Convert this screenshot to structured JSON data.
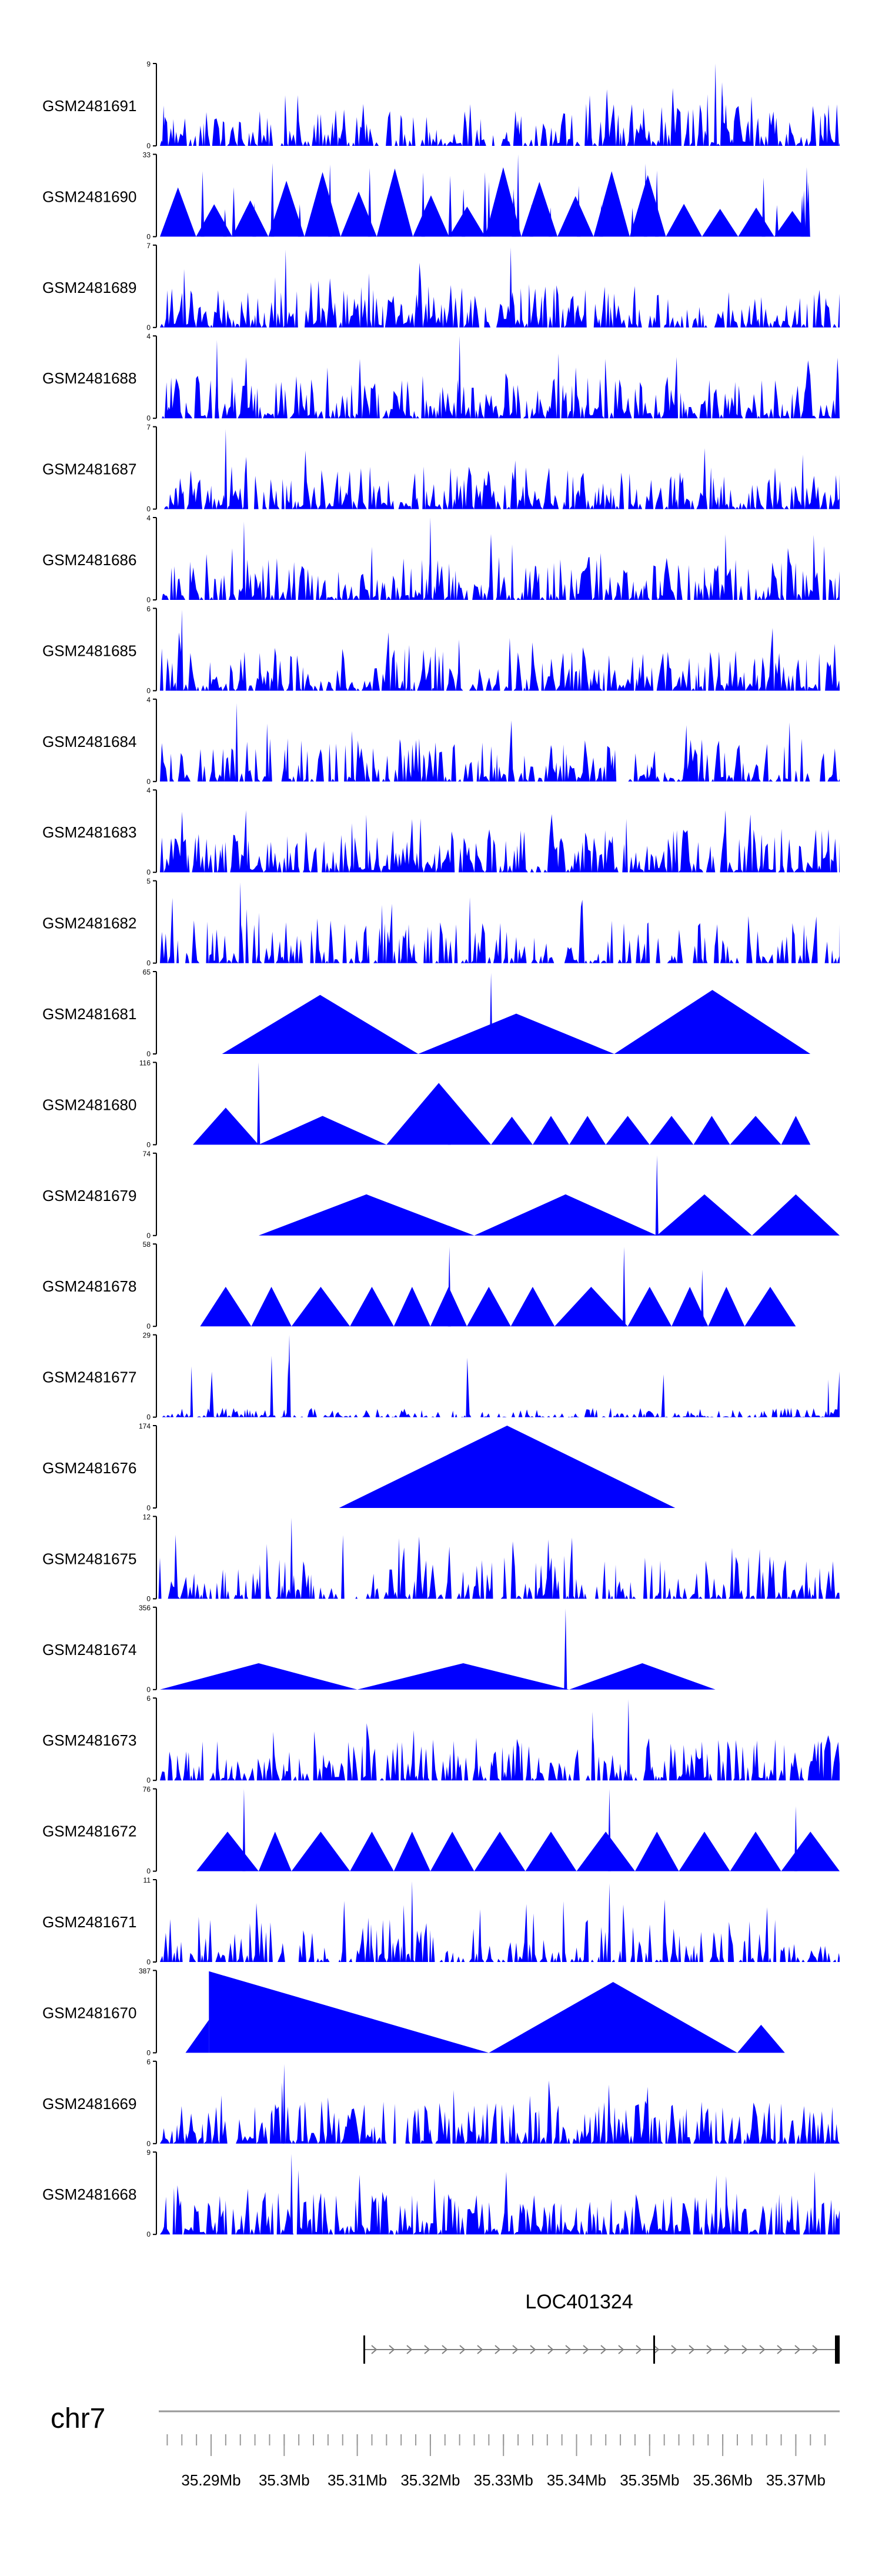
{
  "colors": {
    "signal": "#0000ff",
    "axis": "#000000",
    "gene": "#7f7f7f",
    "chrom_line": "#999999"
  },
  "gene": {
    "name": "LOC401324",
    "strand": "+"
  },
  "chromosome": {
    "label": "chr7"
  },
  "chart_data": {
    "type": "area",
    "title": "",
    "xlabel": "",
    "x_range_mb": [
      35.283,
      35.376
    ],
    "x_ticks": [
      {
        "pos": 35.29,
        "label": "35.29Mb"
      },
      {
        "pos": 35.3,
        "label": "35.3Mb"
      },
      {
        "pos": 35.31,
        "label": "35.31Mb"
      },
      {
        "pos": 35.32,
        "label": "35.32Mb"
      },
      {
        "pos": 35.33,
        "label": "35.33Mb"
      },
      {
        "pos": 35.34,
        "label": "35.34Mb"
      },
      {
        "pos": 35.35,
        "label": "35.35Mb"
      },
      {
        "pos": 35.36,
        "label": "35.36Mb"
      },
      {
        "pos": 35.37,
        "label": "35.37Mb"
      }
    ],
    "series": [
      {
        "name": "GSM2481691",
        "ymax": 9,
        "style": "dense",
        "seed": 11,
        "density": 0.62,
        "end": 1.0,
        "spikes": [
          [
            35.359,
            9.0
          ],
          [
            35.36,
            5.6
          ],
          [
            35.2835,
            4.4
          ]
        ]
      },
      {
        "name": "GSM2481690",
        "ymax": 33,
        "style": "tri",
        "seed": 12,
        "start": 35.283,
        "end": 35.372,
        "peaks": [
          0.25,
          0.55
        ],
        "nspike": 28,
        "spikes": [
          [
            35.332,
            33.0
          ],
          [
            35.328,
            22.0
          ]
        ]
      },
      {
        "name": "GSM2481689",
        "ymax": 7,
        "style": "dense",
        "seed": 13,
        "density": 0.72,
        "end": 1.0,
        "spikes": [
          [
            35.331,
            6.8
          ],
          [
            35.3002,
            6.6
          ]
        ]
      },
      {
        "name": "GSM2481688",
        "ymax": 4,
        "style": "dense",
        "seed": 14,
        "density": 0.75,
        "end": 1.0,
        "spikes": [
          [
            35.324,
            4.0
          ],
          [
            35.2908,
            3.8
          ]
        ]
      },
      {
        "name": "GSM2481687",
        "ymax": 7,
        "style": "dense",
        "seed": 15,
        "density": 0.72,
        "end": 1.0,
        "spikes": [
          [
            35.292,
            6.8
          ]
        ]
      },
      {
        "name": "GSM2481686",
        "ymax": 4,
        "style": "dense",
        "seed": 16,
        "density": 0.7,
        "end": 1.0,
        "spikes": [
          [
            35.32,
            4.0
          ],
          [
            35.2945,
            3.8
          ]
        ]
      },
      {
        "name": "GSM2481685",
        "ymax": 6,
        "style": "dense",
        "seed": 17,
        "density": 0.7,
        "end": 1.0,
        "spikes": [
          [
            35.286,
            5.9
          ]
        ]
      },
      {
        "name": "GSM2481684",
        "ymax": 4,
        "style": "dense",
        "seed": 18,
        "density": 0.62,
        "end": 1.0,
        "spikes": [
          [
            35.2935,
            3.8
          ]
        ]
      },
      {
        "name": "GSM2481683",
        "ymax": 4,
        "style": "dense",
        "seed": 19,
        "density": 0.78,
        "end": 1.0,
        "spikes": []
      },
      {
        "name": "GSM2481682",
        "ymax": 5,
        "style": "dense",
        "seed": 20,
        "density": 0.5,
        "end": 1.0,
        "spikes": [
          [
            35.294,
            4.9
          ],
          [
            35.3254,
            4.0
          ]
        ]
      },
      {
        "name": "GSM2481681",
        "ymax": 65,
        "style": "tri",
        "seed": 21,
        "start": 35.2915,
        "end": 35.372,
        "segments": 3,
        "peaks": [
          0.6
        ],
        "nspike": 0,
        "spikes": [
          [
            35.3283,
            64.0
          ]
        ]
      },
      {
        "name": "GSM2481680",
        "ymax": 116,
        "style": "tri",
        "seed": 22,
        "start": 35.2875,
        "end": 35.372,
        "segs": [
          [
            35.2875,
            35.2965,
            0.45
          ],
          [
            35.2965,
            35.314,
            0.35
          ],
          [
            35.314,
            35.3283,
            0.75
          ],
          [
            35.3283,
            35.334,
            0.34
          ],
          [
            35.334,
            35.339,
            0.35
          ],
          [
            35.339,
            35.344,
            0.35
          ],
          [
            35.344,
            35.35,
            0.35
          ],
          [
            35.35,
            35.356,
            0.35
          ],
          [
            35.356,
            35.361,
            0.35
          ],
          [
            35.361,
            35.368,
            0.35
          ],
          [
            35.368,
            35.372,
            0.35
          ]
        ],
        "spikes": [
          [
            35.2965,
            116.0
          ],
          [
            35.3226,
            64.0
          ]
        ]
      },
      {
        "name": "GSM2481679",
        "ymax": 74,
        "style": "tri",
        "seed": 23,
        "start": 35.2965,
        "end": 35.376,
        "segs": [
          [
            35.2965,
            35.326,
            0.5
          ],
          [
            35.326,
            35.351,
            0.5
          ],
          [
            35.351,
            35.364,
            0.5
          ],
          [
            35.364,
            35.376,
            0.5
          ]
        ],
        "spikes": [
          [
            35.351,
            72.0
          ]
        ]
      },
      {
        "name": "GSM2481678",
        "ymax": 58,
        "style": "tri",
        "seed": 24,
        "start": 35.2885,
        "end": 35.37,
        "segs": [
          [
            35.2885,
            35.2955,
            0.48
          ],
          [
            35.2955,
            35.301,
            0.48
          ],
          [
            35.301,
            35.309,
            0.48
          ],
          [
            35.309,
            35.315,
            0.48
          ],
          [
            35.315,
            35.32,
            0.48
          ],
          [
            35.32,
            35.325,
            0.48
          ],
          [
            35.325,
            35.331,
            0.48
          ],
          [
            35.331,
            35.337,
            0.48
          ],
          [
            35.337,
            35.347,
            0.48
          ],
          [
            35.347,
            35.353,
            0.48
          ],
          [
            35.353,
            35.358,
            0.48
          ],
          [
            35.358,
            35.363,
            0.48
          ],
          [
            35.363,
            35.37,
            0.48
          ]
        ],
        "spikes": [
          [
            35.3226,
            56.0
          ],
          [
            35.3465,
            56.0
          ],
          [
            35.3572,
            40.0
          ]
        ]
      },
      {
        "name": "GSM2481677",
        "ymax": 29,
        "style": "dense",
        "seed": 25,
        "density": 0.5,
        "end": 1.0,
        "amp": 0.12,
        "spikes": [
          [
            35.3007,
            29.0
          ]
        ]
      },
      {
        "name": "GSM2481676",
        "ymax": 174,
        "style": "tri",
        "seed": 26,
        "start": 35.3075,
        "end": 35.3535,
        "segs": [
          [
            35.3075,
            35.3535,
            1.0
          ]
        ],
        "spikes": []
      },
      {
        "name": "GSM2481675",
        "ymax": 12,
        "style": "dense",
        "seed": 27,
        "density": 0.55,
        "end": 1.0,
        "spikes": [
          [
            35.301,
            11.8
          ],
          [
            35.283,
            6.0
          ]
        ]
      },
      {
        "name": "GSM2481674",
        "ymax": 356,
        "style": "tri",
        "seed": 28,
        "start": 35.283,
        "end": 35.359,
        "segs": [
          [
            35.283,
            35.31,
            0.32
          ],
          [
            35.31,
            35.339,
            0.32
          ],
          [
            35.339,
            35.359,
            0.32
          ]
        ],
        "spikes": [
          [
            35.3385,
            350.0
          ]
        ]
      },
      {
        "name": "GSM2481673",
        "ymax": 6,
        "style": "dense",
        "seed": 29,
        "density": 0.65,
        "end": 1.0,
        "spikes": [
          [
            35.3471,
            5.9
          ],
          [
            35.3422,
            5.0
          ]
        ]
      },
      {
        "name": "GSM2481672",
        "ymax": 76,
        "style": "tri",
        "seed": 30,
        "start": 35.288,
        "end": 35.376,
        "segs": [
          [
            35.288,
            35.2965,
            0.48
          ],
          [
            35.2965,
            35.301,
            0.48
          ],
          [
            35.301,
            35.309,
            0.48
          ],
          [
            35.309,
            35.315,
            0.48
          ],
          [
            35.315,
            35.32,
            0.48
          ],
          [
            35.32,
            35.326,
            0.48
          ],
          [
            35.326,
            35.333,
            0.48
          ],
          [
            35.333,
            35.34,
            0.48
          ],
          [
            35.34,
            35.348,
            0.48
          ],
          [
            35.348,
            35.354,
            0.48
          ],
          [
            35.354,
            35.361,
            0.48
          ],
          [
            35.361,
            35.368,
            0.48
          ],
          [
            35.368,
            35.376,
            0.48
          ]
        ],
        "spikes": [
          [
            35.2945,
            76.0
          ],
          [
            35.3445,
            76.0
          ],
          [
            35.37,
            60.0
          ]
        ]
      },
      {
        "name": "GSM2481671",
        "ymax": 11,
        "style": "dense",
        "seed": 31,
        "density": 0.55,
        "end": 1.0,
        "spikes": [
          [
            35.3175,
            10.8
          ],
          [
            35.3445,
            10.5
          ]
        ]
      },
      {
        "name": "GSM2481670",
        "ymax": 387,
        "style": "tri",
        "seed": 32,
        "start": 35.2865,
        "end": 35.3685,
        "segs": [
          [
            35.2865,
            35.328,
            0.0
          ],
          [
            35.328,
            35.362,
            0.86
          ],
          [
            35.362,
            35.3685,
            0.34
          ]
        ],
        "ramps": [
          [
            35.2865,
            35.2897,
            0.0,
            0.4
          ],
          [
            35.2897,
            35.328,
            0.99,
            0.0
          ]
        ],
        "spikes": []
      },
      {
        "name": "GSM2481669",
        "ymax": 6,
        "style": "dense",
        "seed": 33,
        "density": 0.65,
        "end": 1.0,
        "spikes": [
          [
            35.3,
            5.8
          ]
        ]
      },
      {
        "name": "GSM2481668",
        "ymax": 9,
        "style": "dense",
        "seed": 34,
        "density": 0.78,
        "end": 1.0,
        "spikes": [
          [
            35.301,
            8.8
          ]
        ]
      }
    ]
  }
}
